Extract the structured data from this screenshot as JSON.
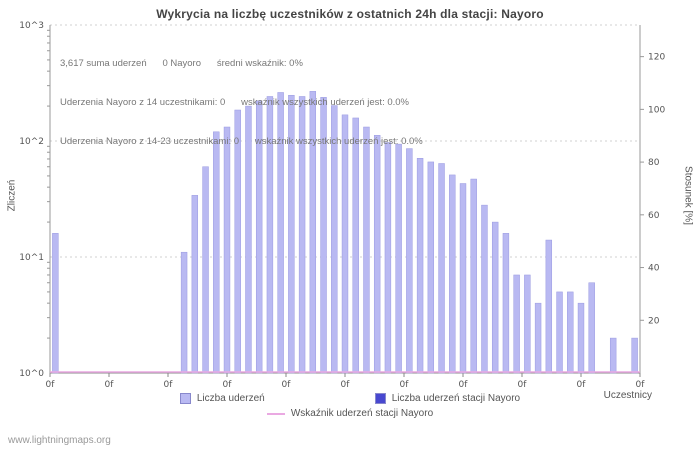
{
  "page": {
    "title": "Wykrycia na liczbę uczestników z ostatnich 24h dla stacji: Nayoro",
    "footer": "www.lightningmaps.org"
  },
  "annotations": {
    "line1": "3,617 suma uderzeń      0 Nayoro      średni wskaźnik: 0%",
    "line2": "Uderzenia Nayoro z 14 uczestnikami: 0      wskaźnik wszystkich uderzeń jest: 0.0%",
    "line3": "Uderzenia Nayoro z 14-23 uczestnikami: 0      wskaźnik wszystkich uderzeń jest: 0.0%"
  },
  "legend": {
    "items": [
      {
        "label": "Liczba uderzeń",
        "color": "#b9b9f2",
        "type": "bar"
      },
      {
        "label": "Liczba uderzeń stacji Nayoro",
        "color": "#4848d0",
        "type": "bar"
      },
      {
        "label": "Wskaźnik uderzeń stacji Nayoro",
        "color": "#eaa9e2",
        "type": "line"
      }
    ]
  },
  "chart_data": {
    "type": "bar",
    "title": "Wykrycia na liczbę uczestników z ostatnich 24h dla stacji: Nayoro",
    "xlabel": "Uczestnicy",
    "ylabel_left": "Zliczeń",
    "ylabel_right": "Stosunek [%]",
    "y_left_scale": "log",
    "y_left_ticks": [
      "10^0",
      "10^1",
      "10^2",
      "10^3"
    ],
    "y_right_ticks": [
      20,
      40,
      60,
      80,
      100,
      120
    ],
    "y_right_max": 132,
    "x_ticks": [
      "0f",
      "0f",
      "0f",
      "0f",
      "0f",
      "0f",
      "0f",
      "0f",
      "0f",
      "0f",
      "0f"
    ],
    "slot_count": 55,
    "grid": true,
    "legend_position": "bottom",
    "total_strikes_label": "3,617 suma uderzeń",
    "series": [
      {
        "name": "Liczba uderzeń",
        "type": "bar",
        "color": "#b9b9f2",
        "stroke": "#9a9ae0",
        "points": [
          [
            0,
            16
          ],
          [
            12,
            11
          ],
          [
            13,
            34
          ],
          [
            14,
            60
          ],
          [
            15,
            120
          ],
          [
            16,
            132
          ],
          [
            17,
            185
          ],
          [
            18,
            200
          ],
          [
            19,
            222
          ],
          [
            20,
            242
          ],
          [
            21,
            262
          ],
          [
            22,
            248
          ],
          [
            23,
            242
          ],
          [
            24,
            268
          ],
          [
            25,
            238
          ],
          [
            26,
            202
          ],
          [
            27,
            168
          ],
          [
            28,
            158
          ],
          [
            29,
            132
          ],
          [
            30,
            112
          ],
          [
            31,
            97
          ],
          [
            32,
            94
          ],
          [
            33,
            86
          ],
          [
            34,
            71
          ],
          [
            35,
            66
          ],
          [
            36,
            64
          ],
          [
            37,
            51
          ],
          [
            38,
            43
          ],
          [
            39,
            47
          ],
          [
            40,
            28
          ],
          [
            41,
            20
          ],
          [
            42,
            16
          ],
          [
            43,
            7
          ],
          [
            44,
            7
          ],
          [
            45,
            4
          ],
          [
            46,
            14
          ],
          [
            47,
            5
          ],
          [
            48,
            5
          ],
          [
            49,
            4
          ],
          [
            50,
            6
          ],
          [
            52,
            2
          ],
          [
            54,
            2
          ]
        ]
      },
      {
        "name": "Liczba uderzeń stacji Nayoro",
        "type": "bar",
        "color": "#4848d0",
        "points": []
      },
      {
        "name": "Wskaźnik uderzeń stacji Nayoro",
        "type": "line",
        "color": "#eaa9e2",
        "constant_value": 0
      }
    ]
  }
}
